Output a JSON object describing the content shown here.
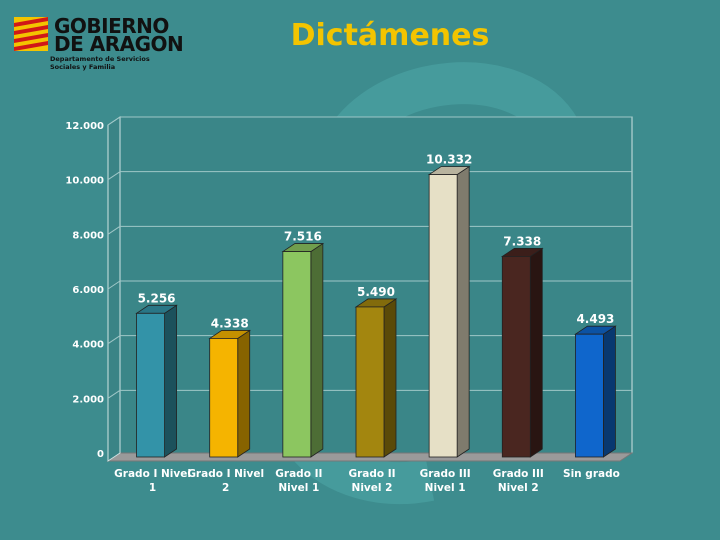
{
  "header": {
    "logo_line1": "GOBIERNO",
    "logo_line2": "DE ARAGON",
    "logo_sub1": "Departamento de Servicios",
    "logo_sub2": "Sociales y Familia",
    "title": "Dictámenes"
  },
  "colors": {
    "background": "#3d8c8e",
    "title": "#f3c400",
    "plot_bg": "#3a8688",
    "grid": "#9fc7c7"
  },
  "chart_data": {
    "type": "bar",
    "style": "3d",
    "title": "Dictámenes",
    "xlabel": "",
    "ylabel": "",
    "ylim": [
      0,
      12000
    ],
    "yticks": [
      0,
      2000,
      4000,
      6000,
      8000,
      10000,
      12000
    ],
    "ytick_labels": [
      "0",
      "2.000",
      "4.000",
      "6.000",
      "8.000",
      "10.000",
      "12.000"
    ],
    "grid": true,
    "legend": "none",
    "categories": [
      {
        "line1": "Grado I Nivel",
        "line2": "1"
      },
      {
        "line1": "Grado I Nivel",
        "line2": "2"
      },
      {
        "line1": "Grado II",
        "line2": "Nivel 1"
      },
      {
        "line1": "Grado II",
        "line2": "Nivel 2"
      },
      {
        "line1": "Grado III",
        "line2": "Nivel 1"
      },
      {
        "line1": "Grado III",
        "line2": "Nivel 2"
      },
      {
        "line1": "Sin grado",
        "line2": ""
      }
    ],
    "values": [
      5256,
      4338,
      7516,
      5490,
      10332,
      7338,
      4493
    ],
    "value_labels": [
      "5.256",
      "4.338",
      "7.516",
      "5.490",
      "10.332",
      "7.338",
      "4.493"
    ],
    "bar_colors": [
      "#3393a8",
      "#f5b400",
      "#8cc660",
      "#a3860f",
      "#e6e0c6",
      "#4a2620",
      "#0f66cc"
    ]
  }
}
